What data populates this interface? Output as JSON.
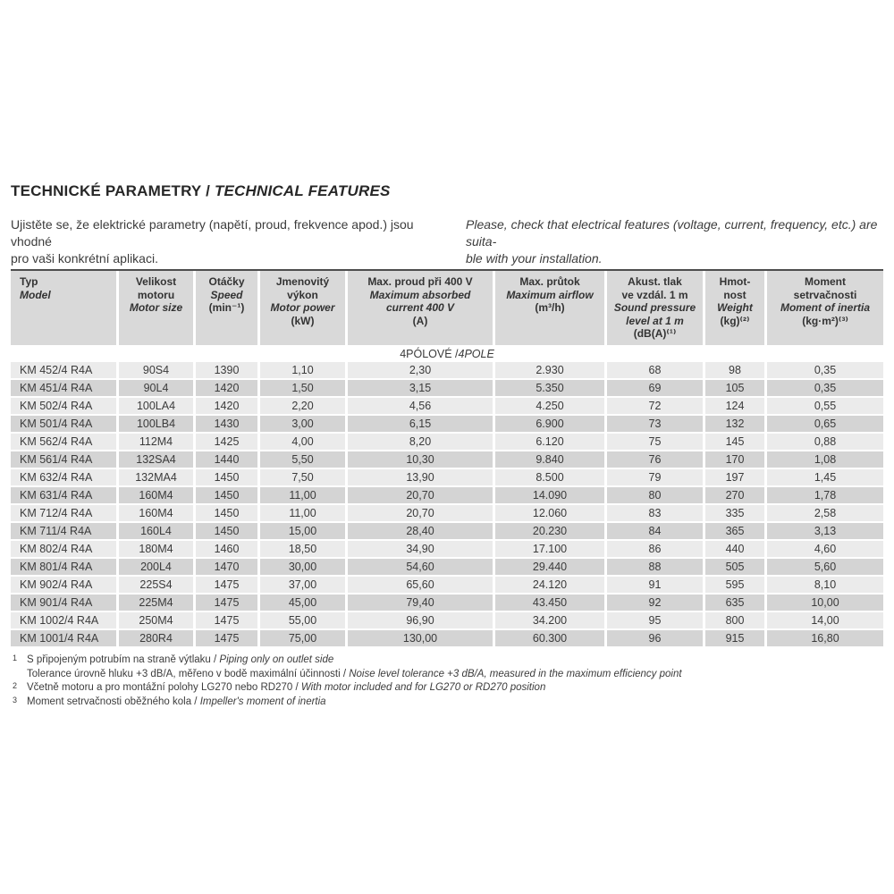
{
  "colors": {
    "header_bg": "#d9d9d9",
    "row_light": "#ebebeb",
    "row_dark": "#d4d4d4",
    "top_border": "#4d4d4d"
  },
  "title": {
    "cz": "TECHNICKÉ PARAMETRY / ",
    "en": "TECHNICAL FEATURES"
  },
  "intro": {
    "cz": "Ujistěte se, že elektrické parametry (napětí, proud, frekvence apod.) jsou vhodné\npro vaši konkrétní aplikaci.",
    "en": "Please, check that electrical features (voltage, current, frequency, etc.) are suita-\nble with your installation."
  },
  "table": {
    "section": {
      "cz": "4PÓLOVÉ / ",
      "en": "4POLE"
    },
    "columns": [
      {
        "key": "model",
        "cz": "Typ",
        "en": "Model",
        "unit": ""
      },
      {
        "key": "size",
        "cz": "Velikost\nmotoru",
        "en": "Motor size",
        "unit": ""
      },
      {
        "key": "speed",
        "cz": "Otáčky",
        "en": "Speed",
        "unit": "(min⁻¹)"
      },
      {
        "key": "power",
        "cz": "Jmenovitý\nvýkon",
        "en": "Motor power",
        "unit": "(kW)"
      },
      {
        "key": "current",
        "cz": "Max. proud při 400 V",
        "en": "Maximum absorbed\ncurrent 400 V",
        "unit": "(A)"
      },
      {
        "key": "airflow",
        "cz": "Max. průtok",
        "en": "Maximum airflow",
        "unit": "(m³/h)"
      },
      {
        "key": "noise",
        "cz": "Akust. tlak\nve vzdál. 1 m",
        "en": "Sound pressure\nlevel at 1 m",
        "unit": "(dB(A)⁽¹⁾"
      },
      {
        "key": "weight",
        "cz": "Hmot-\nnost",
        "en": "Weight",
        "unit": "(kg)⁽²⁾"
      },
      {
        "key": "inertia",
        "cz": "Moment\nsetrvačnosti",
        "en": "Moment of inertia",
        "unit": "(kg·m²)⁽³⁾"
      }
    ],
    "rows": [
      {
        "model": "KM 452/4 R4A",
        "size": "90S4",
        "speed": "1390",
        "power": "1,10",
        "current": "2,30",
        "airflow": "2.930",
        "noise": "68",
        "weight": "98",
        "inertia": "0,35"
      },
      {
        "model": "KM 451/4 R4A",
        "size": "90L4",
        "speed": "1420",
        "power": "1,50",
        "current": "3,15",
        "airflow": "5.350",
        "noise": "69",
        "weight": "105",
        "inertia": "0,35"
      },
      {
        "model": "KM 502/4 R4A",
        "size": "100LA4",
        "speed": "1420",
        "power": "2,20",
        "current": "4,56",
        "airflow": "4.250",
        "noise": "72",
        "weight": "124",
        "inertia": "0,55"
      },
      {
        "model": "KM 501/4 R4A",
        "size": "100LB4",
        "speed": "1430",
        "power": "3,00",
        "current": "6,15",
        "airflow": "6.900",
        "noise": "73",
        "weight": "132",
        "inertia": "0,65"
      },
      {
        "model": "KM 562/4 R4A",
        "size": "112M4",
        "speed": "1425",
        "power": "4,00",
        "current": "8,20",
        "airflow": "6.120",
        "noise": "75",
        "weight": "145",
        "inertia": "0,88"
      },
      {
        "model": "KM 561/4 R4A",
        "size": "132SA4",
        "speed": "1440",
        "power": "5,50",
        "current": "10,30",
        "airflow": "9.840",
        "noise": "76",
        "weight": "170",
        "inertia": "1,08"
      },
      {
        "model": "KM 632/4 R4A",
        "size": "132MA4",
        "speed": "1450",
        "power": "7,50",
        "current": "13,90",
        "airflow": "8.500",
        "noise": "79",
        "weight": "197",
        "inertia": "1,45"
      },
      {
        "model": "KM 631/4 R4A",
        "size": "160M4",
        "speed": "1450",
        "power": "11,00",
        "current": "20,70",
        "airflow": "14.090",
        "noise": "80",
        "weight": "270",
        "inertia": "1,78"
      },
      {
        "model": "KM 712/4 R4A",
        "size": "160M4",
        "speed": "1450",
        "power": "11,00",
        "current": "20,70",
        "airflow": "12.060",
        "noise": "83",
        "weight": "335",
        "inertia": "2,58"
      },
      {
        "model": "KM 711/4 R4A",
        "size": "160L4",
        "speed": "1450",
        "power": "15,00",
        "current": "28,40",
        "airflow": "20.230",
        "noise": "84",
        "weight": "365",
        "inertia": "3,13"
      },
      {
        "model": "KM 802/4 R4A",
        "size": "180M4",
        "speed": "1460",
        "power": "18,50",
        "current": "34,90",
        "airflow": "17.100",
        "noise": "86",
        "weight": "440",
        "inertia": "4,60"
      },
      {
        "model": "KM 801/4 R4A",
        "size": "200L4",
        "speed": "1470",
        "power": "30,00",
        "current": "54,60",
        "airflow": "29.440",
        "noise": "88",
        "weight": "505",
        "inertia": "5,60"
      },
      {
        "model": "KM 902/4 R4A",
        "size": "225S4",
        "speed": "1475",
        "power": "37,00",
        "current": "65,60",
        "airflow": "24.120",
        "noise": "91",
        "weight": "595",
        "inertia": "8,10"
      },
      {
        "model": "KM 901/4 R4A",
        "size": "225M4",
        "speed": "1475",
        "power": "45,00",
        "current": "79,40",
        "airflow": "43.450",
        "noise": "92",
        "weight": "635",
        "inertia": "10,00"
      },
      {
        "model": "KM 1002/4 R4A",
        "size": "250M4",
        "speed": "1475",
        "power": "55,00",
        "current": "96,90",
        "airflow": "34.200",
        "noise": "95",
        "weight": "800",
        "inertia": "14,00"
      },
      {
        "model": "KM 1001/4 R4A",
        "size": "280R4",
        "speed": "1475",
        "power": "75,00",
        "current": "130,00",
        "airflow": "60.300",
        "noise": "96",
        "weight": "915",
        "inertia": "16,80"
      }
    ]
  },
  "footnotes": [
    {
      "marker": "1",
      "cz": "S připojeným potrubím na straně výtlaku / ",
      "en": "Piping only on outlet side"
    },
    {
      "marker": "",
      "cz": "Tolerance úrovně hluku +3 dB/A, měřeno v bodě maximální účinnosti / ",
      "en": "Noise level tolerance +3 dB/A, measured in the maximum efficiency point"
    },
    {
      "marker": "2",
      "cz": "Včetně motoru a pro montážní polohy LG270 nebo RD270 / ",
      "en": "With motor included and for LG270 or RD270 position"
    },
    {
      "marker": "3",
      "cz": "Moment setrvačnosti oběžného kola / ",
      "en": "Impeller's moment of inertia"
    }
  ]
}
